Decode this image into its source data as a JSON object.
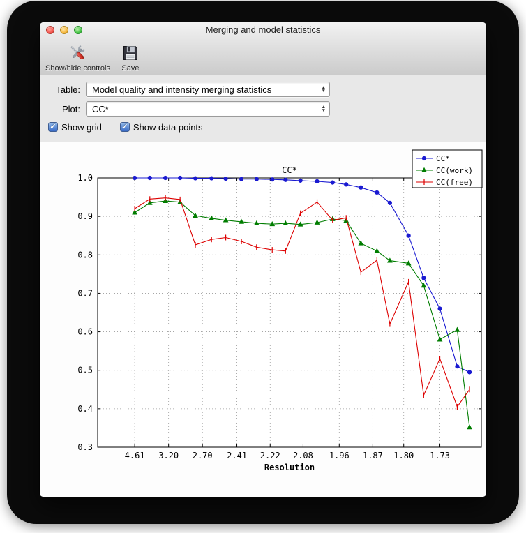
{
  "window": {
    "title": "Merging and model statistics"
  },
  "toolbar": {
    "items": [
      {
        "label": "Show/hide controls"
      },
      {
        "label": "Save"
      }
    ]
  },
  "controls": {
    "table_label": "Table:",
    "table_value": "Model quality and intensity merging statistics",
    "plot_label": "Plot:",
    "plot_value": "CC*",
    "checkboxes": [
      {
        "label": "Show grid",
        "checked": true
      },
      {
        "label": "Show data points",
        "checked": true
      }
    ]
  },
  "chart_data": {
    "type": "line",
    "title": "CC*",
    "xlabel": "Resolution",
    "ylabel": "",
    "grid": true,
    "legend_position": "upper right",
    "ylim": [
      0.3,
      1.0
    ],
    "yticks": [
      0.3,
      0.4,
      0.5,
      0.6,
      0.7,
      0.8,
      0.9,
      1.0
    ],
    "xticks": [
      "4.61",
      "3.20",
      "2.70",
      "2.41",
      "2.22",
      "2.08",
      "1.96",
      "1.87",
      "1.80",
      "1.73"
    ],
    "x_axis_note": "resolution in angstroms, high resolution to the right",
    "x_resolution": [
      4.61,
      3.73,
      3.27,
      2.99,
      2.78,
      2.61,
      2.49,
      2.38,
      2.29,
      2.21,
      2.15,
      2.09,
      2.03,
      1.98,
      1.94,
      1.9,
      1.86,
      1.83,
      1.79,
      1.76,
      1.73,
      1.7,
      1.68
    ],
    "series": [
      {
        "name": "CC*",
        "color": "#1a1ad1",
        "marker": "circle",
        "values": [
          1.0,
          1.0,
          1.0,
          1.0,
          0.999,
          0.999,
          0.998,
          0.997,
          0.997,
          0.996,
          0.995,
          0.993,
          0.991,
          0.988,
          0.983,
          0.975,
          0.962,
          0.935,
          0.85,
          0.74,
          0.66,
          0.51,
          0.495
        ]
      },
      {
        "name": "CC(work)",
        "color": "#007d00",
        "marker": "triangle",
        "values": [
          0.91,
          0.935,
          0.94,
          0.937,
          0.902,
          0.895,
          0.89,
          0.886,
          0.882,
          0.88,
          0.882,
          0.879,
          0.884,
          0.893,
          0.889,
          0.83,
          0.81,
          0.785,
          0.778,
          0.72,
          0.58,
          0.605,
          0.352
        ]
      },
      {
        "name": "CC(free)",
        "color": "#dd0000",
        "marker": "vtick",
        "values": [
          0.92,
          0.945,
          0.948,
          0.944,
          0.826,
          0.84,
          0.845,
          0.835,
          0.82,
          0.813,
          0.81,
          0.908,
          0.937,
          0.89,
          0.896,
          0.755,
          0.786,
          0.62,
          0.73,
          0.435,
          0.53,
          0.405,
          0.45
        ]
      }
    ]
  }
}
